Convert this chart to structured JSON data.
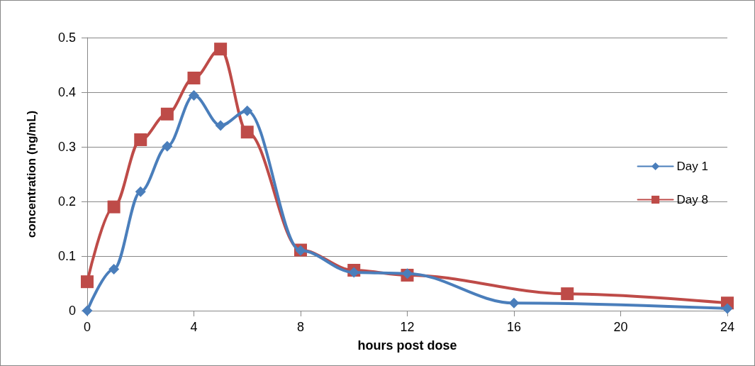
{
  "chart_data": {
    "type": "line",
    "xlabel": "hours post dose",
    "ylabel": "concentration (ng/mL)",
    "xlim": [
      0,
      24
    ],
    "xticks": [
      0,
      4,
      8,
      12,
      16,
      20,
      24
    ],
    "ylim": [
      0,
      0.5
    ],
    "yticks": [
      0,
      0.1,
      0.2,
      0.3,
      0.4,
      0.5
    ],
    "grid": "y",
    "legend": "right",
    "line_style": "solid",
    "series": [
      {
        "name": "Day 1",
        "color": "#4a7ebb",
        "marker": "diamond",
        "x": [
          0,
          1,
          2,
          3,
          4,
          5,
          6,
          8,
          10,
          12,
          16,
          24
        ],
        "values": [
          0,
          0.076,
          0.218,
          0.301,
          0.394,
          0.339,
          0.366,
          0.11,
          0.07,
          0.068,
          0.014,
          0.004
        ]
      },
      {
        "name": "Day 8",
        "color": "#be4b48",
        "marker": "square",
        "x": [
          0,
          1,
          2,
          3,
          4,
          5,
          6,
          8,
          10,
          12,
          18,
          24
        ],
        "values": [
          0.053,
          0.19,
          0.313,
          0.36,
          0.426,
          0.479,
          0.327,
          0.111,
          0.074,
          0.065,
          0.031,
          0.014
        ]
      }
    ]
  }
}
